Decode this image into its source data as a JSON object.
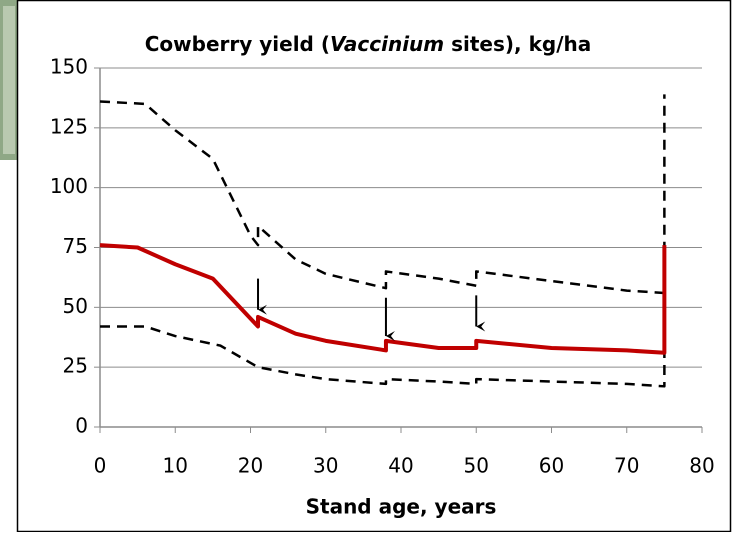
{
  "chart_data": {
    "type": "line",
    "title": [
      "Cowberry yield (",
      "Vaccinium",
      " sites), kg/ha"
    ],
    "title_italic": [
      false,
      true,
      false
    ],
    "x_label": "Stand age, years",
    "xlim": [
      0,
      80
    ],
    "xticks": [
      0,
      10,
      20,
      30,
      40,
      50,
      60,
      70,
      80
    ],
    "ylim": [
      0,
      150
    ],
    "yticks": [
      0,
      25,
      50,
      75,
      100,
      125,
      150
    ],
    "grid": true,
    "series": [
      {
        "color": "#000000",
        "dashed": true,
        "width": 2.5,
        "x": [
          0,
          6,
          10,
          15,
          20,
          21,
          21,
          26,
          30,
          38,
          38,
          45,
          50,
          50,
          60,
          70,
          75,
          75
        ],
        "values": [
          136,
          135,
          124,
          112,
          80,
          76,
          84,
          70,
          64,
          58,
          65,
          62,
          59,
          65,
          61,
          57,
          56,
          139
        ]
      },
      {
        "color": "#000000",
        "dashed": true,
        "width": 2.5,
        "x": [
          0,
          6,
          10,
          16,
          21,
          26,
          30,
          38,
          38,
          45,
          50,
          50,
          60,
          70,
          75,
          75
        ],
        "values": [
          42,
          42,
          38,
          34,
          25,
          22,
          20,
          18,
          20,
          19,
          18,
          20,
          19,
          18,
          17,
          56
        ]
      },
      {
        "color": "#c00000",
        "dashed": false,
        "width": 4,
        "x": [
          0,
          5,
          10,
          15,
          21,
          21,
          26,
          30,
          38,
          38,
          45,
          50,
          50,
          60,
          70,
          75,
          75
        ],
        "values": [
          76,
          75,
          68,
          62,
          42,
          46,
          39,
          36,
          32,
          36,
          33,
          33,
          36,
          33,
          32,
          31,
          76
        ]
      }
    ],
    "arrows": [
      {
        "x": 21,
        "y": [
          62,
          49
        ]
      },
      {
        "x": 38,
        "y": [
          54,
          38
        ]
      },
      {
        "x": 50,
        "y": [
          55,
          42
        ]
      }
    ]
  }
}
